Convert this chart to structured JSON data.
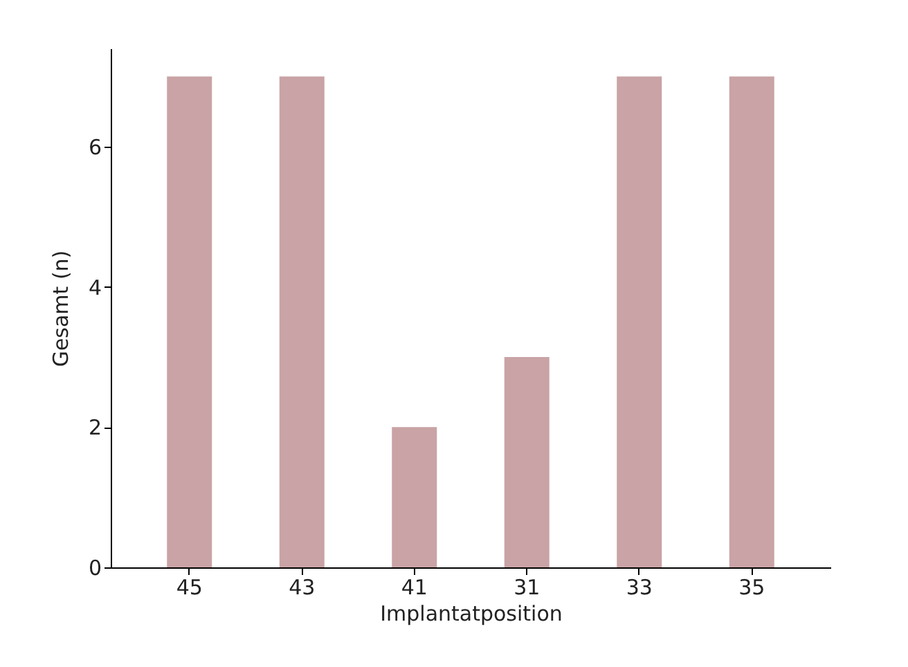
{
  "chart_data": {
    "type": "bar",
    "xlabel": "Implantatposition",
    "ylabel": "Gesamt (n)",
    "categories": [
      "45",
      "43",
      "41",
      "31",
      "33",
      "35"
    ],
    "values": [
      7,
      7,
      2,
      3,
      7,
      7
    ],
    "color": "#c9a3a5",
    "ylim": [
      0,
      7.4
    ],
    "yticks": [
      0,
      2,
      4,
      6
    ],
    "grid": false
  }
}
